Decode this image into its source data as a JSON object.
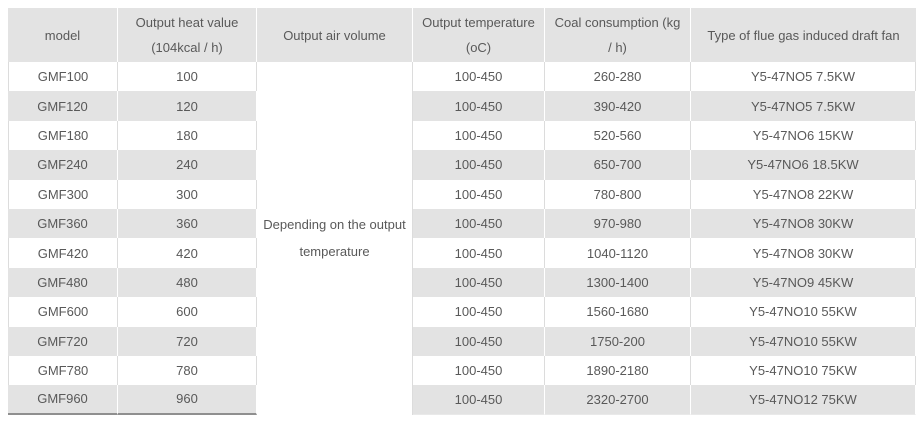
{
  "colors": {
    "page_bg": "#ffffff",
    "header_bg": "#e3e3e3",
    "row_bg": "#ffffff",
    "row_alt_bg": "#e3e3e3",
    "text": "#595959",
    "grid_line_light": "#dcdcdc",
    "grid_line_white": "#ffffff",
    "bottom_rule_dark": "#8f8f8f",
    "bottom_rule_light": "#e9e9e9"
  },
  "table": {
    "headers": {
      "model": "model",
      "heat_line1": "Output heat value",
      "heat_line2": "(104kcal / h)",
      "air_volume": "Output air volume",
      "temp_line1": "Output temperature",
      "temp_line2": "(oC)",
      "coal_line1": "Coal consumption (kg",
      "coal_line2": "/ h)",
      "fan": "Type of flue gas induced draft fan"
    },
    "air_volume_note_line1": "Depending on the output",
    "air_volume_note_line2": "temperature",
    "rows": [
      {
        "model": "GMF100",
        "heat_value": "100",
        "output_temperature": "100-450",
        "coal_consumption": "260-280",
        "fan_type": "Y5-47NO5 7.5KW"
      },
      {
        "model": "GMF120",
        "heat_value": "120",
        "output_temperature": "100-450",
        "coal_consumption": "390-420",
        "fan_type": "Y5-47NO5 7.5KW"
      },
      {
        "model": "GMF180",
        "heat_value": "180",
        "output_temperature": "100-450",
        "coal_consumption": "520-560",
        "fan_type": "Y5-47NO6 15KW"
      },
      {
        "model": "GMF240",
        "heat_value": "240",
        "output_temperature": "100-450",
        "coal_consumption": "650-700",
        "fan_type": "Y5-47NO6 18.5KW"
      },
      {
        "model": "GMF300",
        "heat_value": "300",
        "output_temperature": "100-450",
        "coal_consumption": "780-800",
        "fan_type": "Y5-47NO8 22KW"
      },
      {
        "model": "GMF360",
        "heat_value": "360",
        "output_temperature": "100-450",
        "coal_consumption": "970-980",
        "fan_type": "Y5-47NO8 30KW"
      },
      {
        "model": "GMF420",
        "heat_value": "420",
        "output_temperature": "100-450",
        "coal_consumption": "1040-1120",
        "fan_type": "Y5-47NO8 30KW"
      },
      {
        "model": "GMF480",
        "heat_value": "480",
        "output_temperature": "100-450",
        "coal_consumption": "1300-1400",
        "fan_type": "Y5-47NO9 45KW"
      },
      {
        "model": "GMF600",
        "heat_value": "600",
        "output_temperature": "100-450",
        "coal_consumption": "1560-1680",
        "fan_type": "Y5-47NO10 55KW"
      },
      {
        "model": "GMF720",
        "heat_value": "720",
        "output_temperature": "100-450",
        "coal_consumption": "1750-200",
        "fan_type": "Y5-47NO10 55KW"
      },
      {
        "model": "GMF780",
        "heat_value": "780",
        "output_temperature": "100-450",
        "coal_consumption": "1890-2180",
        "fan_type": "Y5-47NO10 75KW"
      },
      {
        "model": "GMF960",
        "heat_value": "960",
        "output_temperature": "100-450",
        "coal_consumption": "2320-2700",
        "fan_type": "Y5-47NO12 75KW"
      }
    ]
  }
}
